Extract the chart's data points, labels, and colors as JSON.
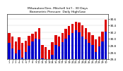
{
  "title": "Milwaukee/Gen. Mitchell Int'l - 30 Days",
  "title2": "Barometric Pressure  Daily High/Low",
  "high_color": "#dd0000",
  "low_color": "#0000cc",
  "background_color": "#ffffff",
  "ylim_min": 29.4,
  "ylim_max": 30.75,
  "yticks": [
    29.4,
    29.6,
    29.8,
    30.0,
    30.2,
    30.4,
    30.6
  ],
  "ytick_labels": [
    "29.4",
    "29.6",
    "29.8",
    "30.0",
    "30.2",
    "30.4",
    "30.6"
  ],
  "n": 30,
  "highs": [
    30.18,
    30.08,
    29.92,
    30.05,
    29.88,
    29.95,
    30.1,
    30.16,
    30.22,
    30.32,
    29.82,
    29.75,
    29.68,
    29.9,
    30.12,
    30.08,
    30.18,
    30.3,
    30.38,
    30.45,
    30.52,
    30.48,
    30.4,
    30.32,
    30.2,
    30.12,
    29.98,
    30.08,
    30.22,
    30.58
  ],
  "lows": [
    29.88,
    29.72,
    29.58,
    29.68,
    29.45,
    29.62,
    29.8,
    29.92,
    30.02,
    29.98,
    29.42,
    29.32,
    29.22,
    29.52,
    29.82,
    29.78,
    29.9,
    30.02,
    30.12,
    30.18,
    30.25,
    30.2,
    30.08,
    29.98,
    29.88,
    29.82,
    29.62,
    29.78,
    29.92,
    30.22
  ],
  "xtick_labels": [
    "1",
    "2",
    "3",
    "4",
    "5",
    "6",
    "7",
    "8",
    "9",
    "10",
    "11",
    "12",
    "13",
    "14",
    "15",
    "16",
    "17",
    "18",
    "19",
    "20",
    "21",
    "22",
    "23",
    "24",
    "25",
    "26",
    "27",
    "28",
    "29",
    "30"
  ]
}
